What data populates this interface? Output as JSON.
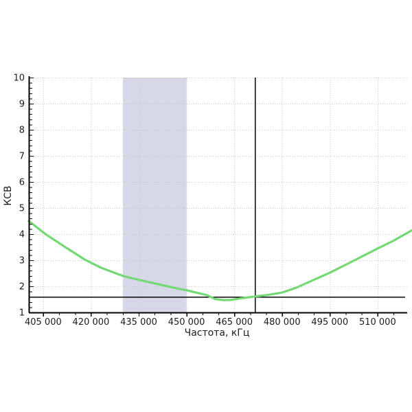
{
  "chart_data": {
    "type": "line",
    "title": "",
    "xlabel": "Частота, кГц",
    "ylabel": "КСВ",
    "xlim": [
      400500,
      519300
    ],
    "ylim": [
      1,
      10
    ],
    "grid": true,
    "legend": "none",
    "x_ticks": [
      {
        "value": 405000,
        "label": "405 000"
      },
      {
        "value": 420000,
        "label": "420 000"
      },
      {
        "value": 435000,
        "label": "435 000"
      },
      {
        "value": 450000,
        "label": "450 000"
      },
      {
        "value": 465000,
        "label": "465 000"
      },
      {
        "value": 480000,
        "label": "480 000"
      },
      {
        "value": 495000,
        "label": "495 000"
      },
      {
        "value": 510000,
        "label": "510 000"
      }
    ],
    "x_minor_step": 5000,
    "y_ticks": [
      {
        "value": 1,
        "label": "1"
      },
      {
        "value": 2,
        "label": "2"
      },
      {
        "value": 3,
        "label": "3"
      },
      {
        "value": 4,
        "label": "4"
      },
      {
        "value": 5,
        "label": "5"
      },
      {
        "value": 6,
        "label": "6"
      },
      {
        "value": 7,
        "label": "7"
      },
      {
        "value": 8,
        "label": "8"
      },
      {
        "value": 9,
        "label": "9"
      },
      {
        "value": 10,
        "label": "10"
      }
    ],
    "y_minor_step": 0.2,
    "highlight_band": {
      "x_from": 430000,
      "x_to": 450000,
      "color": "#d6d8e8"
    },
    "vline": {
      "x": 471500,
      "color": "#000000"
    },
    "hline": {
      "y": 1.6,
      "color": "#000000"
    },
    "series": [
      {
        "name": "КСВ",
        "color": "#74d874",
        "points": [
          [
            400500,
            4.5
          ],
          [
            406000,
            3.98
          ],
          [
            412000,
            3.5
          ],
          [
            418000,
            3.03
          ],
          [
            423000,
            2.72
          ],
          [
            430000,
            2.4
          ],
          [
            435000,
            2.25
          ],
          [
            440500,
            2.1
          ],
          [
            447000,
            1.92
          ],
          [
            450000,
            1.85
          ],
          [
            456500,
            1.66
          ],
          [
            459000,
            1.51
          ],
          [
            461500,
            1.47
          ],
          [
            464000,
            1.48
          ],
          [
            467500,
            1.55
          ],
          [
            471500,
            1.61
          ],
          [
            476000,
            1.68
          ],
          [
            480000,
            1.76
          ],
          [
            484500,
            1.95
          ],
          [
            490500,
            2.28
          ],
          [
            495000,
            2.52
          ],
          [
            501500,
            2.92
          ],
          [
            510000,
            3.45
          ],
          [
            515000,
            3.75
          ],
          [
            520800,
            4.15
          ]
        ]
      }
    ]
  },
  "colors": {
    "background": "#ffffff",
    "axis": "#000000",
    "gridline": "#c6c6c6",
    "curve": "#74d874",
    "band": "#d6d8e8",
    "marker_lines": "#000000",
    "text": "#1c1c1c"
  }
}
